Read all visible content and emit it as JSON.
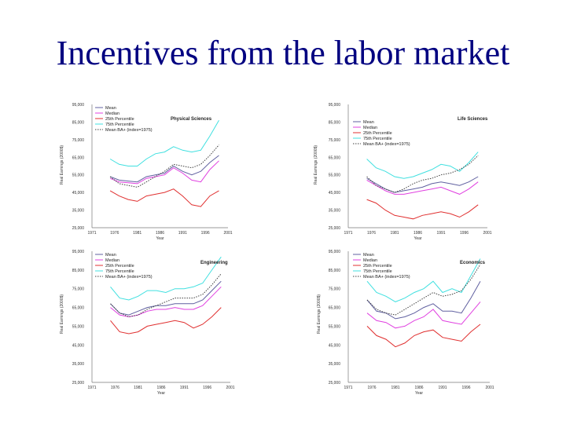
{
  "slide_title": "Incentives from the labor market",
  "colors": {
    "title": "#000080",
    "mean": "#6060a0",
    "median": "#e040e0",
    "p25": "#e03030",
    "p75": "#40e0e0",
    "ba": "#404040"
  },
  "chart_data": [
    {
      "type": "line",
      "title": "Physical Sciences",
      "xlabel": "Year",
      "ylabel": "Real Earnings (2000$)",
      "ylim": [
        25000,
        95000
      ],
      "yticks": [
        "95,000",
        "85,000",
        "75,000",
        "65,000",
        "55,000",
        "45,000",
        "35,000",
        "25,000"
      ],
      "xticks": [
        "1971",
        "1976",
        "1981",
        "1986",
        "1991",
        "1996",
        "2001"
      ],
      "legend": [
        "Mean",
        "Median",
        "25th Percentile",
        "75th Percentile",
        "Mean BA+ (index=1975)"
      ],
      "x": [
        1975,
        1977,
        1979,
        1981,
        1983,
        1985,
        1987,
        1989,
        1991,
        1993,
        1995,
        1997,
        1999
      ],
      "series": [
        {
          "name": "Mean",
          "values": [
            54000,
            52000,
            51500,
            51000,
            54000,
            55000,
            56000,
            60000,
            57000,
            55000,
            57000,
            62000,
            66000
          ]
        },
        {
          "name": "Median",
          "values": [
            53000,
            51000,
            50500,
            50000,
            53000,
            54000,
            55000,
            59000,
            56000,
            52000,
            51000,
            58000,
            63000
          ]
        },
        {
          "name": "25th Percentile",
          "values": [
            46000,
            43000,
            41000,
            40000,
            43000,
            44000,
            45000,
            47000,
            43000,
            38000,
            37000,
            43000,
            46000
          ]
        },
        {
          "name": "75th Percentile",
          "values": [
            64000,
            61000,
            60000,
            60000,
            64000,
            67000,
            68000,
            71000,
            69000,
            68000,
            69000,
            77000,
            86000
          ]
        },
        {
          "name": "Mean BA+ (index=1975)",
          "values": [
            54000,
            50000,
            49000,
            48000,
            51000,
            54000,
            57000,
            61000,
            60000,
            59000,
            61000,
            66000,
            72000
          ]
        }
      ]
    },
    {
      "type": "line",
      "title": "Life Sciences",
      "xlabel": "Year",
      "ylabel": "Real Earnings (2000$)",
      "ylim": [
        25000,
        95000
      ],
      "yticks": [
        "95,000",
        "85,000",
        "75,000",
        "65,000",
        "55,000",
        "45,000",
        "35,000",
        "25,000"
      ],
      "xticks": [
        "1971",
        "1976",
        "1981",
        "1986",
        "1991",
        "1996",
        "2001"
      ],
      "legend": [
        "Mean",
        "Median",
        "25th Percentile",
        "75th Percentile",
        "Mean BA+ (index=1975)"
      ],
      "x": [
        1975,
        1977,
        1979,
        1981,
        1983,
        1985,
        1987,
        1989,
        1991,
        1993,
        1995,
        1997,
        1999
      ],
      "series": [
        {
          "name": "Mean",
          "values": [
            53000,
            50000,
            47000,
            45000,
            46000,
            47000,
            48000,
            50000,
            51000,
            50000,
            49000,
            51000,
            54000
          ]
        },
        {
          "name": "Median",
          "values": [
            52000,
            49000,
            46000,
            44000,
            44000,
            45000,
            46000,
            47000,
            48000,
            46000,
            44000,
            47000,
            51000
          ]
        },
        {
          "name": "25th Percentile",
          "values": [
            41000,
            39000,
            35000,
            32000,
            31000,
            30000,
            32000,
            33000,
            34000,
            33000,
            31000,
            34000,
            38000
          ]
        },
        {
          "name": "75th Percentile",
          "values": [
            64000,
            59000,
            57000,
            54000,
            53000,
            54000,
            56000,
            58000,
            61000,
            60000,
            57000,
            62000,
            68000
          ]
        },
        {
          "name": "Mean BA+ (index=1975)",
          "values": [
            54000,
            49000,
            47000,
            45000,
            47000,
            50000,
            52000,
            53000,
            55000,
            56000,
            58000,
            61000,
            66000
          ]
        }
      ]
    },
    {
      "type": "line",
      "title": "Engineering",
      "xlabel": "Year",
      "ylabel": "Real Earnings (2000$)",
      "ylim": [
        25000,
        95000
      ],
      "yticks": [
        "95,000",
        "85,000",
        "75,000",
        "65,000",
        "55,000",
        "45,000",
        "35,000",
        "25,000"
      ],
      "xticks": [
        "1971",
        "1976",
        "1981",
        "1986",
        "1991",
        "1996",
        "2001"
      ],
      "legend": [
        "Mean",
        "Median",
        "25th Percentile",
        "75th Percentile",
        "Mean BA+ (index=1975)"
      ],
      "x": [
        1975,
        1977,
        1979,
        1981,
        1983,
        1985,
        1987,
        1989,
        1991,
        1993,
        1995,
        1997,
        1999
      ],
      "series": [
        {
          "name": "Mean",
          "values": [
            67000,
            62000,
            61000,
            63000,
            65000,
            66000,
            66000,
            67000,
            67000,
            67000,
            69000,
            74000,
            79000
          ]
        },
        {
          "name": "Median",
          "values": [
            65000,
            61000,
            60000,
            61000,
            63000,
            64000,
            64000,
            65000,
            64000,
            64000,
            66000,
            71000,
            76000
          ]
        },
        {
          "name": "25th Percentile",
          "values": [
            58000,
            52000,
            51000,
            52000,
            55000,
            56000,
            57000,
            58000,
            57000,
            54000,
            56000,
            60000,
            65000
          ]
        },
        {
          "name": "75th Percentile",
          "values": [
            76000,
            70000,
            69000,
            71000,
            74000,
            74000,
            73000,
            75000,
            75000,
            76000,
            78000,
            85000,
            92000
          ]
        },
        {
          "name": "Mean BA+ (index=1975)",
          "values": [
            67000,
            62000,
            60000,
            61000,
            64000,
            66000,
            68000,
            70000,
            70000,
            70000,
            72000,
            77000,
            83000
          ]
        }
      ]
    },
    {
      "type": "line",
      "title": "Economics",
      "xlabel": "Year",
      "ylabel": "Real Earnings (2000$)",
      "ylim": [
        25000,
        95000
      ],
      "yticks": [
        "95,000",
        "85,000",
        "75,000",
        "65,000",
        "55,000",
        "45,000",
        "35,000",
        "25,000"
      ],
      "xticks": [
        "1971",
        "1976",
        "1981",
        "1986",
        "1991",
        "1996",
        "2001"
      ],
      "legend": [
        "Mean",
        "Median",
        "25th Percentile",
        "75th Percentile",
        "Mean BA+ (index=1975)"
      ],
      "x": [
        1975,
        1977,
        1979,
        1981,
        1983,
        1985,
        1987,
        1989,
        1991,
        1993,
        1995,
        1997,
        1999
      ],
      "series": [
        {
          "name": "Mean",
          "values": [
            69000,
            63000,
            62000,
            59000,
            60000,
            62000,
            65000,
            67000,
            63000,
            63000,
            62000,
            70000,
            79000
          ]
        },
        {
          "name": "Median",
          "values": [
            62000,
            58000,
            57000,
            54000,
            55000,
            58000,
            60000,
            64000,
            58000,
            57000,
            56000,
            62000,
            68000
          ]
        },
        {
          "name": "25th Percentile",
          "values": [
            55000,
            50000,
            48000,
            44000,
            46000,
            50000,
            52000,
            53000,
            49000,
            48000,
            47000,
            52000,
            56000
          ]
        },
        {
          "name": "75th Percentile",
          "values": [
            79000,
            73000,
            71000,
            68000,
            70000,
            73000,
            75000,
            79000,
            73000,
            75000,
            73000,
            82000,
            91000
          ]
        },
        {
          "name": "Mean BA+ (index=1975)",
          "values": [
            69000,
            64000,
            62000,
            61000,
            64000,
            67000,
            70000,
            73000,
            71000,
            72000,
            74000,
            80000,
            88000
          ]
        }
      ]
    }
  ]
}
